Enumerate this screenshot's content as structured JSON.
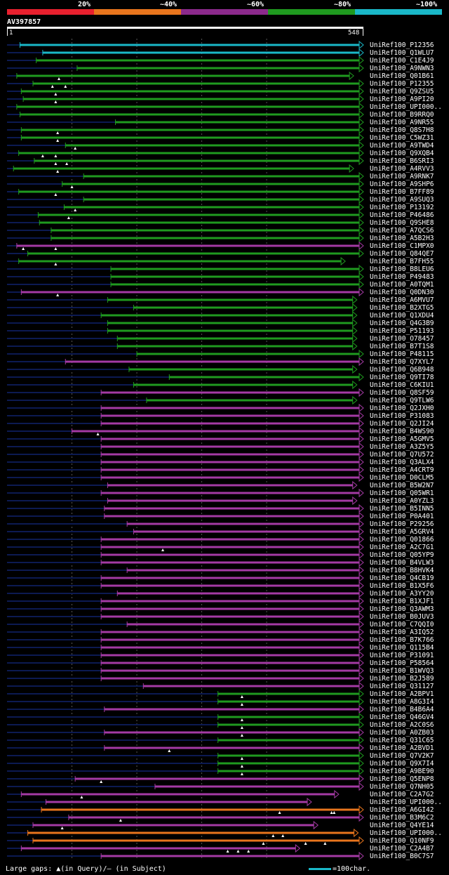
{
  "legend": {
    "segments": [
      {
        "label": "20%",
        "color": "#e8202e"
      },
      {
        "label": "~40%",
        "color": "#e8751d"
      },
      {
        "label": "~60%",
        "color": "#8c2a8c"
      },
      {
        "label": "~80%",
        "color": "#1f9a1f"
      },
      {
        "label": "~100%",
        "color": "#1ab8c8"
      }
    ]
  },
  "query": {
    "name": "AV397857",
    "start": "1",
    "end": "548"
  },
  "footer": {
    "gaps_text": "Large gaps: ▲(in Query)/– (in Subject)",
    "scale_text": "=100char."
  },
  "chart_data": {
    "type": "alignment",
    "query_length": 548,
    "color_levels": {
      "cyan": "~100%",
      "green": "~80%",
      "purple": "~60%",
      "orange": "~40%",
      "red": "20%"
    },
    "hits": [
      {
        "id": "UniRef100_P12356",
        "start": 20,
        "end": 548,
        "color": "cyan",
        "gaps": []
      },
      {
        "id": "UniRef100_Q1WLU7",
        "start": 55,
        "end": 548,
        "color": "cyan",
        "gaps": []
      },
      {
        "id": "UniRef100_C1E4J9",
        "start": 45,
        "end": 548,
        "color": "green",
        "gaps": []
      },
      {
        "id": "UniRef100_A9NWN3",
        "start": 108,
        "end": 548,
        "color": "green",
        "gaps": []
      },
      {
        "id": "UniRef100_Q01B61",
        "start": 15,
        "end": 533,
        "color": "green",
        "gaps": [
          80
        ]
      },
      {
        "id": "UniRef100_P12355",
        "start": 40,
        "end": 548,
        "color": "green",
        "gaps": [
          70,
          90
        ]
      },
      {
        "id": "UniRef100_Q9ZSU5",
        "start": 22,
        "end": 548,
        "color": "green",
        "gaps": [
          75
        ]
      },
      {
        "id": "UniRef100_A9PI20",
        "start": 25,
        "end": 548,
        "color": "green",
        "gaps": [
          75
        ]
      },
      {
        "id": "UniRef100_UPI000..",
        "start": 15,
        "end": 548,
        "color": "green",
        "gaps": []
      },
      {
        "id": "UniRef100_B9RRQ0",
        "start": 20,
        "end": 548,
        "color": "green",
        "gaps": []
      },
      {
        "id": "UniRef100_A9NR55",
        "start": 167,
        "end": 548,
        "color": "green",
        "gaps": []
      },
      {
        "id": "UniRef100_Q8S7H8",
        "start": 22,
        "end": 548,
        "color": "green",
        "gaps": [
          78
        ]
      },
      {
        "id": "UniRef100_C5WZ31",
        "start": 22,
        "end": 548,
        "color": "green",
        "gaps": [
          78
        ]
      },
      {
        "id": "UniRef100_A9TWD4",
        "start": 90,
        "end": 548,
        "color": "green",
        "gaps": [
          105
        ]
      },
      {
        "id": "UniRef100_Q9XQB4",
        "start": 18,
        "end": 548,
        "color": "green",
        "gaps": [
          55,
          75
        ]
      },
      {
        "id": "UniRef100_B6SRI3",
        "start": 42,
        "end": 548,
        "color": "green",
        "gaps": [
          75,
          92
        ]
      },
      {
        "id": "UniRef100_A4RVV3",
        "start": 10,
        "end": 533,
        "color": "green",
        "gaps": [
          78
        ]
      },
      {
        "id": "UniRef100_A9RNK7",
        "start": 118,
        "end": 548,
        "color": "green",
        "gaps": []
      },
      {
        "id": "UniRef100_A9SHP6",
        "start": 85,
        "end": 548,
        "color": "green",
        "gaps": [
          100
        ]
      },
      {
        "id": "UniRef100_B7FF89",
        "start": 18,
        "end": 548,
        "color": "green",
        "gaps": [
          75
        ]
      },
      {
        "id": "UniRef100_A9SUQ3",
        "start": 118,
        "end": 548,
        "color": "green",
        "gaps": []
      },
      {
        "id": "UniRef100_P13192",
        "start": 88,
        "end": 548,
        "color": "green",
        "gaps": [
          105
        ]
      },
      {
        "id": "UniRef100_P46486",
        "start": 48,
        "end": 548,
        "color": "green",
        "gaps": [
          95
        ]
      },
      {
        "id": "UniRef100_Q9SHE8",
        "start": 50,
        "end": 548,
        "color": "green",
        "gaps": []
      },
      {
        "id": "UniRef100_A7QCS6",
        "start": 68,
        "end": 548,
        "color": "green",
        "gaps": []
      },
      {
        "id": "UniRef100_A5B2H3",
        "start": 68,
        "end": 548,
        "color": "green",
        "gaps": []
      },
      {
        "id": "UniRef100_C1MPX0",
        "start": 15,
        "end": 548,
        "color": "purple",
        "gaps": [
          25,
          75
        ]
      },
      {
        "id": "UniRef100_Q84QE7",
        "start": 32,
        "end": 548,
        "color": "green",
        "gaps": []
      },
      {
        "id": "UniRef100_B7FH55",
        "start": 18,
        "end": 520,
        "color": "green",
        "gaps": [
          75
        ]
      },
      {
        "id": "UniRef100_B8LEU6",
        "start": 160,
        "end": 548,
        "color": "green",
        "gaps": []
      },
      {
        "id": "UniRef100_P49483",
        "start": 160,
        "end": 548,
        "color": "green",
        "gaps": []
      },
      {
        "id": "UniRef100_A0TQM1",
        "start": 160,
        "end": 548,
        "color": "green",
        "gaps": []
      },
      {
        "id": "UniRef100_Q0DN30",
        "start": 22,
        "end": 548,
        "color": "purple",
        "gaps": [
          78
        ]
      },
      {
        "id": "UniRef100_A6MVU7",
        "start": 155,
        "end": 538,
        "color": "green",
        "gaps": []
      },
      {
        "id": "UniRef100_B2XTG5",
        "start": 195,
        "end": 538,
        "color": "green",
        "gaps": []
      },
      {
        "id": "UniRef100_Q1XDU4",
        "start": 145,
        "end": 538,
        "color": "green",
        "gaps": []
      },
      {
        "id": "UniRef100_Q4G3B9",
        "start": 155,
        "end": 538,
        "color": "green",
        "gaps": []
      },
      {
        "id": "UniRef100_P51193",
        "start": 155,
        "end": 538,
        "color": "green",
        "gaps": []
      },
      {
        "id": "UniRef100_O78457",
        "start": 170,
        "end": 538,
        "color": "green",
        "gaps": []
      },
      {
        "id": "UniRef100_B7T1S8",
        "start": 170,
        "end": 538,
        "color": "green",
        "gaps": []
      },
      {
        "id": "UniRef100_P48115",
        "start": 200,
        "end": 548,
        "color": "green",
        "gaps": []
      },
      {
        "id": "UniRef100_Q7XYL7",
        "start": 90,
        "end": 548,
        "color": "purple",
        "gaps": []
      },
      {
        "id": "UniRef100_Q6B948",
        "start": 188,
        "end": 538,
        "color": "green",
        "gaps": []
      },
      {
        "id": "UniRef100_Q9TI78",
        "start": 250,
        "end": 548,
        "color": "green",
        "gaps": []
      },
      {
        "id": "UniRef100_C6KIU1",
        "start": 195,
        "end": 538,
        "color": "green",
        "gaps": []
      },
      {
        "id": "UniRef100_Q8SF59",
        "start": 145,
        "end": 548,
        "color": "purple",
        "gaps": []
      },
      {
        "id": "UniRef100_Q9TLW6",
        "start": 215,
        "end": 538,
        "color": "green",
        "gaps": []
      },
      {
        "id": "UniRef100_Q2JXH0",
        "start": 145,
        "end": 548,
        "color": "purple",
        "gaps": []
      },
      {
        "id": "UniRef100_P31083",
        "start": 145,
        "end": 548,
        "color": "purple",
        "gaps": []
      },
      {
        "id": "UniRef100_Q2JI24",
        "start": 145,
        "end": 548,
        "color": "purple",
        "gaps": []
      },
      {
        "id": "UniRef100_B4WS90",
        "start": 100,
        "end": 548,
        "color": "purple",
        "gaps": [
          140
        ]
      },
      {
        "id": "UniRef100_A5GMV5",
        "start": 145,
        "end": 548,
        "color": "purple",
        "gaps": []
      },
      {
        "id": "UniRef100_A3Z5Y5",
        "start": 145,
        "end": 548,
        "color": "purple",
        "gaps": []
      },
      {
        "id": "UniRef100_Q7U572",
        "start": 145,
        "end": 548,
        "color": "purple",
        "gaps": []
      },
      {
        "id": "UniRef100_Q3ALX4",
        "start": 145,
        "end": 548,
        "color": "purple",
        "gaps": []
      },
      {
        "id": "UniRef100_A4CRT9",
        "start": 145,
        "end": 548,
        "color": "purple",
        "gaps": []
      },
      {
        "id": "UniRef100_D0CLM5",
        "start": 145,
        "end": 548,
        "color": "purple",
        "gaps": []
      },
      {
        "id": "UniRef100_B5W2N7",
        "start": 155,
        "end": 538,
        "color": "purple",
        "gaps": []
      },
      {
        "id": "UniRef100_Q05WR1",
        "start": 145,
        "end": 548,
        "color": "purple",
        "gaps": []
      },
      {
        "id": "UniRef100_A0YZL3",
        "start": 155,
        "end": 538,
        "color": "purple",
        "gaps": []
      },
      {
        "id": "UniRef100_B5INN5",
        "start": 150,
        "end": 548,
        "color": "purple",
        "gaps": []
      },
      {
        "id": "UniRef100_P0A401",
        "start": 150,
        "end": 548,
        "color": "purple",
        "gaps": []
      },
      {
        "id": "UniRef100_P29256",
        "start": 185,
        "end": 548,
        "color": "purple",
        "gaps": []
      },
      {
        "id": "UniRef100_A5GRV4",
        "start": 195,
        "end": 548,
        "color": "purple",
        "gaps": []
      },
      {
        "id": "UniRef100_Q01866",
        "start": 145,
        "end": 548,
        "color": "purple",
        "gaps": []
      },
      {
        "id": "UniRef100_A2C7G1",
        "start": 145,
        "end": 548,
        "color": "purple",
        "gaps": [
          240
        ]
      },
      {
        "id": "UniRef100_Q05YP9",
        "start": 145,
        "end": 548,
        "color": "purple",
        "gaps": []
      },
      {
        "id": "UniRef100_B4VLW3",
        "start": 145,
        "end": 548,
        "color": "purple",
        "gaps": []
      },
      {
        "id": "UniRef100_B8HVK4",
        "start": 185,
        "end": 548,
        "color": "purple",
        "gaps": []
      },
      {
        "id": "UniRef100_Q4CB19",
        "start": 145,
        "end": 548,
        "color": "purple",
        "gaps": []
      },
      {
        "id": "UniRef100_B1X5F6",
        "start": 145,
        "end": 548,
        "color": "purple",
        "gaps": []
      },
      {
        "id": "UniRef100_A3YY20",
        "start": 170,
        "end": 548,
        "color": "purple",
        "gaps": []
      },
      {
        "id": "UniRef100_B1XJF1",
        "start": 145,
        "end": 548,
        "color": "purple",
        "gaps": []
      },
      {
        "id": "UniRef100_Q3AWM3",
        "start": 145,
        "end": 548,
        "color": "purple",
        "gaps": []
      },
      {
        "id": "UniRef100_B0JUV3",
        "start": 145,
        "end": 548,
        "color": "purple",
        "gaps": []
      },
      {
        "id": "UniRef100_C7QQI0",
        "start": 185,
        "end": 548,
        "color": "purple",
        "gaps": []
      },
      {
        "id": "UniRef100_A3IQ52",
        "start": 145,
        "end": 548,
        "color": "purple",
        "gaps": []
      },
      {
        "id": "UniRef100_B7K766",
        "start": 145,
        "end": 548,
        "color": "purple",
        "gaps": []
      },
      {
        "id": "UniRef100_Q115B4",
        "start": 145,
        "end": 548,
        "color": "purple",
        "gaps": []
      },
      {
        "id": "UniRef100_P31091",
        "start": 145,
        "end": 548,
        "color": "purple",
        "gaps": []
      },
      {
        "id": "UniRef100_P58564",
        "start": 145,
        "end": 548,
        "color": "purple",
        "gaps": []
      },
      {
        "id": "UniRef100_B1WVQ3",
        "start": 145,
        "end": 548,
        "color": "purple",
        "gaps": []
      },
      {
        "id": "UniRef100_B2J589",
        "start": 145,
        "end": 548,
        "color": "purple",
        "gaps": []
      },
      {
        "id": "UniRef100_Q31127",
        "start": 210,
        "end": 548,
        "color": "purple",
        "gaps": []
      },
      {
        "id": "UniRef100_A2BPV1",
        "start": 325,
        "end": 548,
        "color": "green",
        "gaps": [
          362
        ]
      },
      {
        "id": "UniRef100_A8G3I4",
        "start": 325,
        "end": 548,
        "color": "green",
        "gaps": [
          362
        ]
      },
      {
        "id": "UniRef100_B4B6A4",
        "start": 150,
        "end": 548,
        "color": "purple",
        "gaps": []
      },
      {
        "id": "UniRef100_Q46GV4",
        "start": 325,
        "end": 548,
        "color": "green",
        "gaps": [
          362
        ]
      },
      {
        "id": "UniRef100_A2C0S6",
        "start": 325,
        "end": 548,
        "color": "green",
        "gaps": [
          362
        ]
      },
      {
        "id": "UniRef100_A0ZB03",
        "start": 150,
        "end": 548,
        "color": "purple",
        "gaps": [
          362
        ]
      },
      {
        "id": "UniRef100_Q31C65",
        "start": 325,
        "end": 548,
        "color": "green",
        "gaps": []
      },
      {
        "id": "UniRef100_A2BVD1",
        "start": 150,
        "end": 548,
        "color": "purple",
        "gaps": [
          250
        ]
      },
      {
        "id": "UniRef100_Q7V2K7",
        "start": 325,
        "end": 548,
        "color": "green",
        "gaps": [
          362
        ]
      },
      {
        "id": "UniRef100_Q9X7I4",
        "start": 325,
        "end": 548,
        "color": "green",
        "gaps": [
          362
        ]
      },
      {
        "id": "UniRef100_A9BE90",
        "start": 325,
        "end": 548,
        "color": "green",
        "gaps": [
          362
        ]
      },
      {
        "id": "UniRef100_Q5ENP8",
        "start": 105,
        "end": 548,
        "color": "purple",
        "gaps": [
          145
        ]
      },
      {
        "id": "UniRef100_Q7NH05",
        "start": 228,
        "end": 548,
        "color": "purple",
        "gaps": []
      },
      {
        "id": "UniRef100_C2A7G2",
        "start": 22,
        "end": 510,
        "color": "purple",
        "gaps": [
          115
        ]
      },
      {
        "id": "UniRef100_UPI000..",
        "start": 60,
        "end": 468,
        "color": "purple",
        "gaps": []
      },
      {
        "id": "UniRef100_A6GI42",
        "start": 53,
        "end": 548,
        "color": "orange",
        "gaps": [
          420,
          500,
          504
        ]
      },
      {
        "id": "UniRef100_B3M6C2",
        "start": 95,
        "end": 548,
        "color": "purple",
        "gaps": [
          175
        ]
      },
      {
        "id": "UniRef100_Q4YE14",
        "start": 40,
        "end": 478,
        "color": "purple",
        "gaps": [
          85
        ]
      },
      {
        "id": "UniRef100_UPI000..",
        "start": 32,
        "end": 540,
        "color": "orange",
        "gaps": [
          410,
          425
        ]
      },
      {
        "id": "UniRef100_Q10NF9",
        "start": 40,
        "end": 548,
        "color": "orange",
        "gaps": [
          395,
          460,
          490
        ]
      },
      {
        "id": "UniRef100_C2A4B7",
        "start": 22,
        "end": 450,
        "color": "purple",
        "gaps": [
          340,
          356,
          372
        ]
      },
      {
        "id": "UniRef100_B0C7S7",
        "start": 145,
        "end": 548,
        "color": "purple",
        "gaps": []
      }
    ]
  }
}
